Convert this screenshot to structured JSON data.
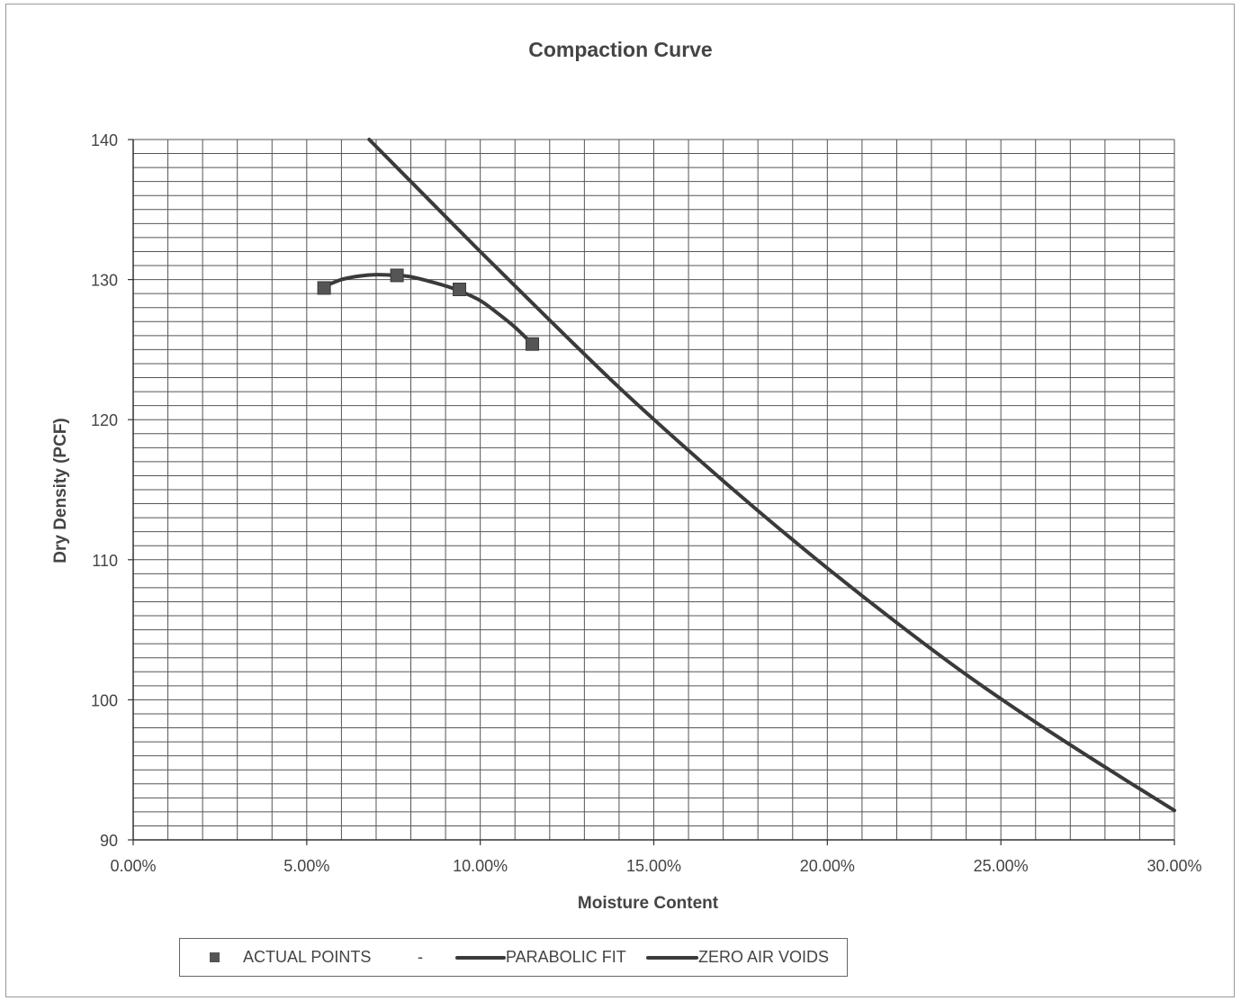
{
  "chart_data": {
    "type": "scatter",
    "title": "Compaction Curve",
    "xlabel": "Moisture Content",
    "ylabel": "Dry Density (PCF)",
    "xlim": [
      0,
      30
    ],
    "ylim": [
      90,
      140
    ],
    "x_tick_labels": [
      "0.00%",
      "5.00%",
      "10.00%",
      "15.00%",
      "20.00%",
      "25.00%",
      "30.00%"
    ],
    "x_ticks": [
      0,
      5,
      10,
      15,
      20,
      25,
      30
    ],
    "y_tick_labels": [
      "90",
      "100",
      "110",
      "120",
      "130",
      "140"
    ],
    "y_ticks": [
      90,
      100,
      110,
      120,
      130,
      140
    ],
    "grid": true,
    "legend_position": "bottom",
    "series": [
      {
        "name": "ACTUAL POINTS",
        "kind": "markers",
        "x": [
          5.5,
          7.6,
          9.4,
          11.5
        ],
        "y": [
          129.4,
          130.3,
          129.3,
          125.4
        ]
      },
      {
        "name": "PARABOLIC FIT",
        "kind": "line",
        "x": [
          5.5,
          6.0,
          6.5,
          7.0,
          7.6,
          8.0,
          8.5,
          9.0,
          9.4,
          10.0,
          10.5,
          11.0,
          11.5
        ],
        "y": [
          129.5,
          130.0,
          130.25,
          130.35,
          130.3,
          130.2,
          129.9,
          129.55,
          129.2,
          128.5,
          127.6,
          126.6,
          125.4
        ]
      },
      {
        "name": "ZERO AIR VOIDS",
        "kind": "line",
        "x": [
          6.8,
          8,
          10,
          12,
          14,
          16,
          18,
          20,
          22,
          24,
          26,
          28,
          30
        ],
        "y": [
          140.0,
          137.0,
          132.0,
          127.1,
          122.3,
          117.8,
          113.5,
          109.4,
          105.5,
          101.8,
          98.4,
          95.2,
          92.1
        ]
      }
    ],
    "colors": {
      "line": "#3a3a3a",
      "marker": "#555555",
      "grid": "#555555",
      "text": "#444444"
    }
  },
  "legend": {
    "actual_points": "ACTUAL POINTS",
    "separator": "-",
    "parabolic_fit": "PARABOLIC FIT",
    "zero_air_voids": "ZERO AIR VOIDS"
  }
}
